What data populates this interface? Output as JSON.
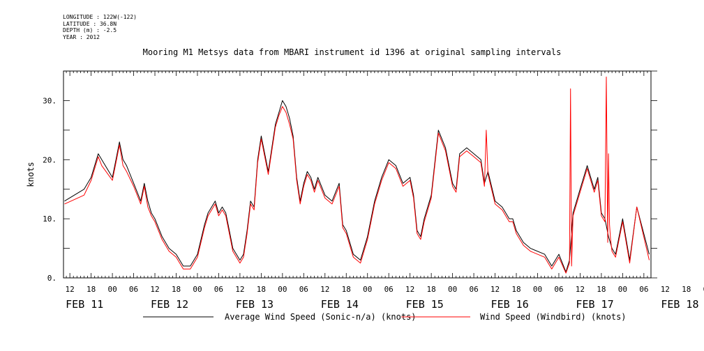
{
  "meta": {
    "longitude": "LONGITUDE : 122W(-122)",
    "latitude": "LATITUDE : 36.8N",
    "depth": "DEPTH (m) : -2.5",
    "year": "YEAR : 2012"
  },
  "chart_data": {
    "type": "line",
    "title": "Mooring M1 Metsys data from MBARI instrument id 1396 at original sampling intervals",
    "xlabel": "",
    "ylabel": "knots",
    "ylim": [
      0,
      35
    ],
    "yticks": [
      0,
      10,
      20,
      30
    ],
    "ytick_labels": [
      "0.",
      "10.",
      "20.",
      "30."
    ],
    "hour_ticks": [
      "12",
      "18",
      "00",
      "06",
      "12",
      "18",
      "00",
      "06",
      "12",
      "18",
      "00",
      "06",
      "12",
      "18",
      "00",
      "06",
      "12",
      "18",
      "00",
      "06",
      "12",
      "18",
      "00",
      "06",
      "12",
      "18",
      "00",
      "06",
      "12",
      "18",
      "00",
      "06"
    ],
    "date_labels": [
      "FEB 11",
      "FEB 12",
      "FEB 13",
      "FEB 14",
      "FEB 15",
      "FEB 16",
      "FEB 17",
      "FEB 18"
    ],
    "x_units": "hours since 00:00 FEB 11",
    "xlim": [
      10.2,
      176
    ],
    "grid": false,
    "legend_position": "bottom",
    "series": [
      {
        "name": "Average Wind Speed (Sonic-n/a) (knots)",
        "color": "#000000",
        "x": [
          10.5,
          16,
          18,
          20,
          21,
          24,
          25,
          26,
          27,
          28,
          30,
          32,
          33,
          34,
          35,
          36,
          38,
          40,
          42,
          44,
          46,
          48,
          50,
          51,
          52,
          53,
          54,
          55,
          56,
          57,
          58,
          59,
          60,
          61,
          62,
          63,
          64,
          65,
          66,
          68,
          70,
          71,
          72,
          73,
          74,
          75,
          76,
          77,
          78,
          79,
          80,
          81,
          82,
          84,
          86,
          88,
          89,
          90,
          92,
          94,
          96,
          98,
          100,
          102,
          104,
          106,
          108,
          109,
          110,
          111,
          112,
          114,
          116,
          118,
          120,
          121,
          122,
          124,
          126,
          128,
          129,
          130,
          132,
          134,
          136,
          137,
          138,
          140,
          142,
          146,
          148,
          150,
          152,
          153,
          154,
          155,
          156,
          158,
          160,
          161,
          162,
          163,
          164,
          165,
          166,
          168,
          170,
          172,
          175.5
        ],
        "y": [
          13,
          15,
          17,
          21,
          20,
          17,
          20,
          23,
          20,
          19,
          16,
          13,
          16,
          13,
          11,
          10,
          7,
          5,
          4,
          2,
          2,
          4,
          9,
          11,
          12,
          13,
          11,
          12,
          11,
          8,
          5,
          4,
          3,
          4,
          8,
          13,
          12,
          20,
          24,
          18,
          26,
          28,
          30,
          29,
          27,
          24,
          17,
          13,
          16,
          18,
          17,
          15,
          17,
          14,
          13,
          16,
          9,
          8,
          4,
          3,
          7,
          13,
          17,
          20,
          19,
          16,
          17,
          14,
          8,
          7,
          10,
          14,
          25,
          22,
          16,
          15,
          21,
          22,
          21,
          20,
          16,
          18,
          13,
          12,
          10,
          10,
          8,
          6,
          5,
          4,
          2,
          4,
          1,
          3,
          11,
          13,
          15,
          19,
          15,
          17,
          11,
          10,
          7,
          5,
          4,
          10,
          3,
          12,
          4
        ],
        "values": [
          13,
          15,
          17,
          21,
          20,
          17,
          20,
          23,
          20,
          19,
          16,
          13,
          16,
          13,
          11,
          10,
          7,
          5,
          4,
          2,
          2,
          4,
          9,
          11,
          12,
          13,
          11,
          12,
          11,
          8,
          5,
          4,
          3,
          4,
          8,
          13,
          12,
          20,
          24,
          18,
          26,
          28,
          30,
          29,
          27,
          24,
          17,
          13,
          16,
          18,
          17,
          15,
          17,
          14,
          13,
          16,
          9,
          8,
          4,
          3,
          7,
          13,
          17,
          20,
          19,
          16,
          17,
          14,
          8,
          7,
          10,
          14,
          25,
          22,
          16,
          15,
          21,
          22,
          21,
          20,
          16,
          18,
          13,
          12,
          10,
          10,
          8,
          6,
          5,
          4,
          2,
          4,
          1,
          3,
          11,
          13,
          15,
          19,
          15,
          17,
          11,
          10,
          7,
          5,
          4,
          10,
          3,
          12,
          4
        ]
      },
      {
        "name": "Wind Speed (Windbird) (knots)",
        "color": "#ff0000",
        "x": [
          10.5,
          16,
          18,
          20,
          21,
          24,
          25,
          26,
          27,
          28,
          30,
          32,
          33,
          34,
          35,
          36,
          38,
          40,
          42,
          44,
          46,
          48,
          50,
          51,
          52,
          53,
          54,
          55,
          56,
          57,
          58,
          59,
          60,
          61,
          62,
          63,
          64,
          65,
          66,
          68,
          70,
          71,
          72,
          73,
          74,
          75,
          76,
          77,
          78,
          79,
          80,
          81,
          82,
          84,
          86,
          88,
          89,
          90,
          92,
          94,
          96,
          98,
          100,
          102,
          104,
          106,
          108,
          109,
          110,
          111,
          112,
          114,
          116,
          118,
          120,
          121,
          122,
          124,
          126,
          128,
          129,
          129.5,
          130,
          132,
          134,
          136,
          137,
          138,
          140,
          142,
          146,
          148,
          150,
          152,
          153,
          153.3,
          153.6,
          154,
          155,
          156,
          158,
          160,
          161,
          162,
          163,
          163.4,
          163.8,
          164,
          164.3,
          164.6,
          165,
          166,
          168,
          170,
          172,
          175.5
        ],
        "y": [
          12.5,
          14,
          16.5,
          20.5,
          19,
          16.5,
          19.5,
          22.5,
          19,
          18,
          15.5,
          12.5,
          15.5,
          12,
          10.5,
          9.5,
          6.5,
          4.5,
          3.5,
          1.5,
          1.5,
          3.5,
          8.5,
          10.5,
          11.5,
          12.5,
          10.5,
          11.5,
          10.5,
          7.5,
          4.5,
          3.5,
          2.5,
          3.5,
          7.5,
          12.5,
          11.5,
          19.5,
          23.5,
          17.5,
          25.5,
          27.5,
          29,
          28,
          26,
          23.5,
          16.5,
          12.5,
          15.5,
          17.5,
          16.5,
          14.5,
          16.5,
          13.5,
          12.5,
          15.5,
          8.5,
          7.5,
          3.5,
          2.5,
          6.5,
          12.5,
          16.5,
          19.5,
          18.5,
          15.5,
          16.5,
          13.5,
          7.5,
          6.5,
          9.5,
          13.5,
          24.5,
          21.5,
          15.5,
          14.5,
          20.5,
          21.5,
          20.5,
          19.5,
          15.5,
          25,
          17.5,
          12.5,
          11.5,
          9.5,
          9.5,
          7.5,
          5.5,
          4.5,
          3.5,
          1.5,
          3.5,
          0.8,
          2.5,
          32,
          2,
          10.5,
          12.5,
          14.5,
          18.5,
          14.5,
          16.5,
          10.5,
          9.5,
          34,
          6,
          21,
          9,
          6.5,
          4.5,
          3.5,
          9.5,
          2.5,
          12,
          3
        ]
      }
    ]
  }
}
